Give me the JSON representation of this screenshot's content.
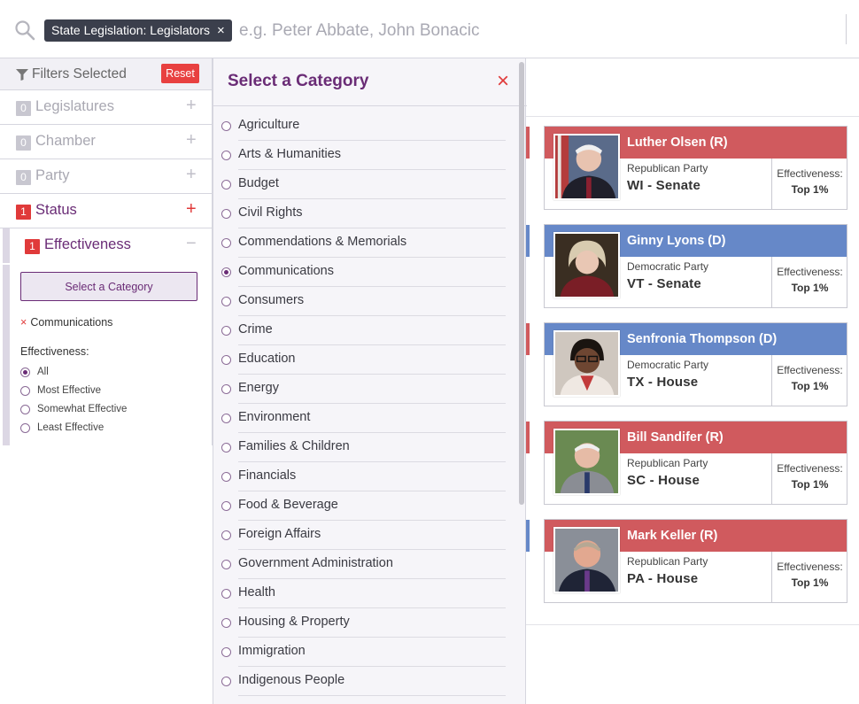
{
  "search": {
    "token_label": "State Legislation: Legislators",
    "token_remove": "×",
    "placeholder": "e.g. Peter Abbate, John Bonacic"
  },
  "filters": {
    "title": "Filters Selected",
    "reset_label": "Reset",
    "rows": [
      {
        "count": "0",
        "label": "Legislatures",
        "toggle": "+"
      },
      {
        "count": "0",
        "label": "Chamber",
        "toggle": "+"
      },
      {
        "count": "0",
        "label": "Party",
        "toggle": "+"
      },
      {
        "count": "1",
        "label": "Status",
        "toggle": "+"
      },
      {
        "count": "1",
        "label": "Effectiveness",
        "toggle": "−"
      }
    ],
    "effectiveness": {
      "select_button": "Select a Category",
      "chosen_remove": "×",
      "chosen_category": "Communications",
      "section_label": "Effectiveness:",
      "options": [
        "All",
        "Most Effective",
        "Somewhat Effective",
        "Least Effective"
      ],
      "selected_option": "All"
    }
  },
  "category_dropdown": {
    "title": "Select a Category",
    "close": "×",
    "selected": "Communications",
    "items": [
      "Agriculture",
      "Arts & Humanities",
      "Budget",
      "Civil Rights",
      "Commendations & Memorials",
      "Communications",
      "Consumers",
      "Crime",
      "Education",
      "Energy",
      "Environment",
      "Families & Children",
      "Financials",
      "Food & Beverage",
      "Foreign Affairs",
      "Government Administration",
      "Health",
      "Housing & Property",
      "Immigration",
      "Indigenous People"
    ]
  },
  "legislators": [
    {
      "name": "Luther Olsen (R)",
      "party": "Republican Party",
      "district": "WI - Senate",
      "eff_label": "Effectiveness:",
      "eff_value": "Top 1%",
      "color": "#d05a5e"
    },
    {
      "name": "Ginny Lyons (D)",
      "party": "Democratic Party",
      "district": "VT - Senate",
      "eff_label": "Effectiveness:",
      "eff_value": "Top 1%",
      "color": "#6688c8"
    },
    {
      "name": "Senfronia Thompson (D)",
      "party": "Democratic Party",
      "district": "TX - House",
      "eff_label": "Effectiveness:",
      "eff_value": "Top 1%",
      "color": "#6688c8"
    },
    {
      "name": "Bill Sandifer (R)",
      "party": "Republican Party",
      "district": "SC - House",
      "eff_label": "Effectiveness:",
      "eff_value": "Top 1%",
      "color": "#d05a5e"
    },
    {
      "name": "Mark Keller (R)",
      "party": "Republican Party",
      "district": "PA - House",
      "eff_label": "Effectiveness:",
      "eff_value": "Top 1%",
      "color": "#d05a5e"
    }
  ],
  "colors": {
    "accent": "#6a2c76",
    "alert": "#e03a3a",
    "republican": "#d05a5e",
    "democrat": "#6688c8"
  }
}
